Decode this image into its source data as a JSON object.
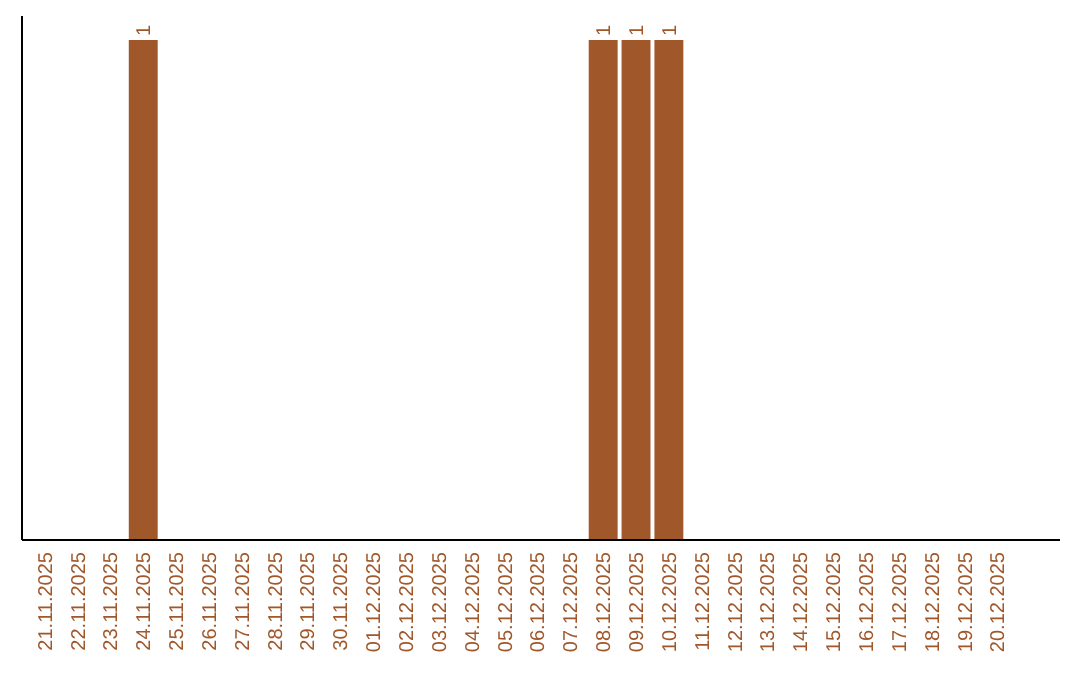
{
  "chart_data": {
    "type": "bar",
    "categories": [
      "21.11.2025",
      "22.11.2025",
      "23.11.2025",
      "24.11.2025",
      "25.11.2025",
      "26.11.2025",
      "27.11.2025",
      "28.11.2025",
      "29.11.2025",
      "30.11.2025",
      "01.12.2025",
      "02.12.2025",
      "03.12.2025",
      "04.12.2025",
      "05.12.2025",
      "06.12.2025",
      "07.12.2025",
      "08.12.2025",
      "09.12.2025",
      "10.12.2025",
      "11.12.2025",
      "12.12.2025",
      "13.12.2025",
      "14.12.2025",
      "15.12.2025",
      "16.12.2025",
      "17.12.2025",
      "18.12.2025",
      "19.12.2025",
      "20.12.2025"
    ],
    "values": [
      0,
      0,
      0,
      1,
      0,
      0,
      0,
      0,
      0,
      0,
      0,
      0,
      0,
      0,
      0,
      0,
      0,
      1,
      1,
      1,
      0,
      0,
      0,
      0,
      0,
      0,
      0,
      0,
      0,
      0
    ],
    "value_labels": [
      null,
      null,
      null,
      "1",
      null,
      null,
      null,
      null,
      null,
      null,
      null,
      null,
      null,
      null,
      null,
      null,
      null,
      "1",
      "1",
      "1",
      null,
      null,
      null,
      null,
      null,
      null,
      null,
      null,
      null,
      null
    ],
    "color": "#a0572a",
    "tick_labels": "x"
  }
}
